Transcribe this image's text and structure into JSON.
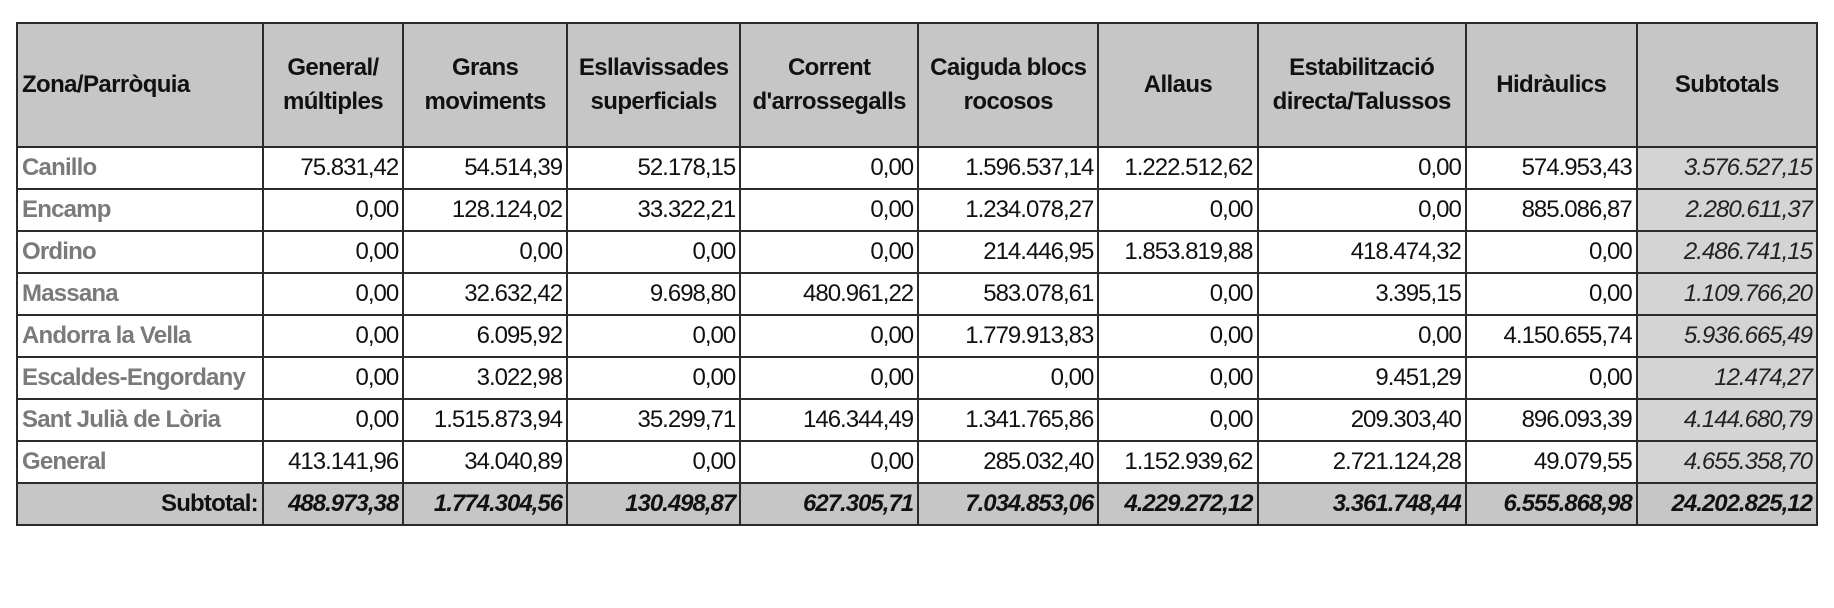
{
  "table": {
    "columns": [
      "Zona/Parròquia",
      "General/\nmúltiples",
      "Grans\nmoviments",
      "Esllavissades\nsuperficials",
      "Corrent\nd'arrossegalls",
      "Caiguda blocs\nrocosos",
      "Allaus",
      "Estabilització\ndirecta/Talussos",
      "Hidràulics",
      "Subtotals"
    ],
    "rows": [
      {
        "zone": "Canillo",
        "values": [
          "75.831,42",
          "54.514,39",
          "52.178,15",
          "0,00",
          "1.596.537,14",
          "1.222.512,62",
          "0,00",
          "574.953,43"
        ],
        "subtotal": "3.576.527,15"
      },
      {
        "zone": "Encamp",
        "values": [
          "0,00",
          "128.124,02",
          "33.322,21",
          "0,00",
          "1.234.078,27",
          "0,00",
          "0,00",
          "885.086,87"
        ],
        "subtotal": "2.280.611,37"
      },
      {
        "zone": "Ordino",
        "values": [
          "0,00",
          "0,00",
          "0,00",
          "0,00",
          "214.446,95",
          "1.853.819,88",
          "418.474,32",
          "0,00"
        ],
        "subtotal": "2.486.741,15"
      },
      {
        "zone": "Massana",
        "values": [
          "0,00",
          "32.632,42",
          "9.698,80",
          "480.961,22",
          "583.078,61",
          "0,00",
          "3.395,15",
          "0,00"
        ],
        "subtotal": "1.109.766,20"
      },
      {
        "zone": "Andorra la Vella",
        "values": [
          "0,00",
          "6.095,92",
          "0,00",
          "0,00",
          "1.779.913,83",
          "0,00",
          "0,00",
          "4.150.655,74"
        ],
        "subtotal": "5.936.665,49"
      },
      {
        "zone": "Escaldes-Engordany",
        "values": [
          "0,00",
          "3.022,98",
          "0,00",
          "0,00",
          "0,00",
          "0,00",
          "9.451,29",
          "0,00"
        ],
        "subtotal": "12.474,27"
      },
      {
        "zone": "Sant Julià de Lòria",
        "values": [
          "0,00",
          "1.515.873,94",
          "35.299,71",
          "146.344,49",
          "1.341.765,86",
          "0,00",
          "209.303,40",
          "896.093,39"
        ],
        "subtotal": "4.144.680,79"
      },
      {
        "zone": "General",
        "values": [
          "413.141,96",
          "34.040,89",
          "0,00",
          "0,00",
          "285.032,40",
          "1.152.939,62",
          "2.721.124,28",
          "49.079,55"
        ],
        "subtotal": "4.655.358,70"
      }
    ],
    "total": {
      "label": "Subtotal:",
      "values": [
        "488.973,38",
        "1.774.304,56",
        "130.498,87",
        "627.305,71",
        "7.034.853,06",
        "4.229.272,12",
        "3.361.748,44",
        "6.555.868,98"
      ],
      "grand": "24.202.825,12"
    }
  }
}
